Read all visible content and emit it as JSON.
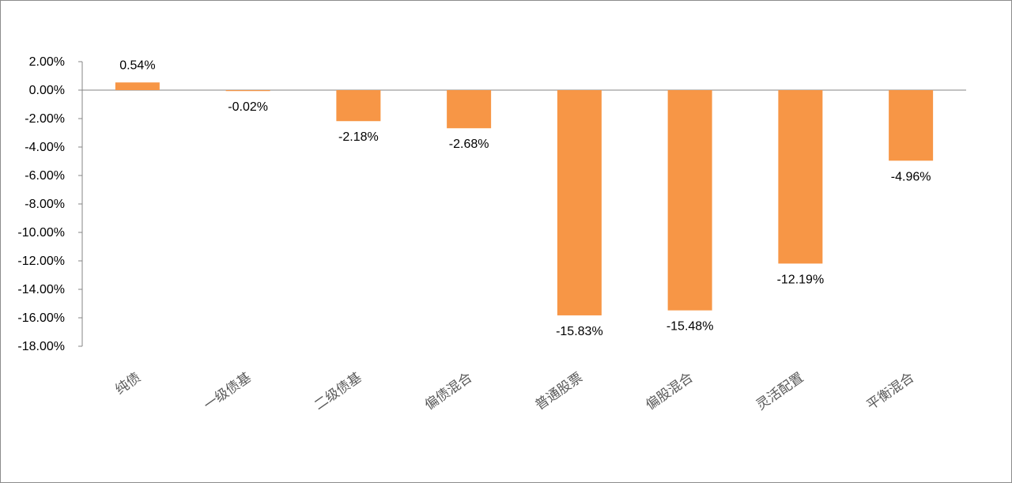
{
  "chart_data": {
    "type": "bar",
    "categories": [
      "纯债",
      "一级债基",
      "二级债基",
      "偏债混合",
      "普通股票",
      "偏股混合",
      "灵活配置",
      "平衡混合"
    ],
    "values": [
      0.54,
      -0.02,
      -2.18,
      -2.68,
      -15.83,
      -15.48,
      -12.19,
      -4.96
    ],
    "data_labels": [
      "0.54%",
      "-0.02%",
      "-2.18%",
      "-2.68%",
      "-15.83%",
      "-15.48%",
      "-12.19%",
      "-4.96%"
    ],
    "y_ticks": [
      2,
      0,
      -2,
      -4,
      -6,
      -8,
      -10,
      -12,
      -14,
      -16,
      -18
    ],
    "y_tick_labels": [
      "2.00%",
      "0.00%",
      "-2.00%",
      "-4.00%",
      "-6.00%",
      "-8.00%",
      "-10.00%",
      "-12.00%",
      "-14.00%",
      "-16.00%",
      "-18.00%"
    ],
    "ylim": [
      -18,
      2
    ],
    "title": "",
    "xlabel": "",
    "ylabel": "",
    "grid": false,
    "legend": "none",
    "bar_color": "#F79646",
    "axis_color": "#868686"
  }
}
